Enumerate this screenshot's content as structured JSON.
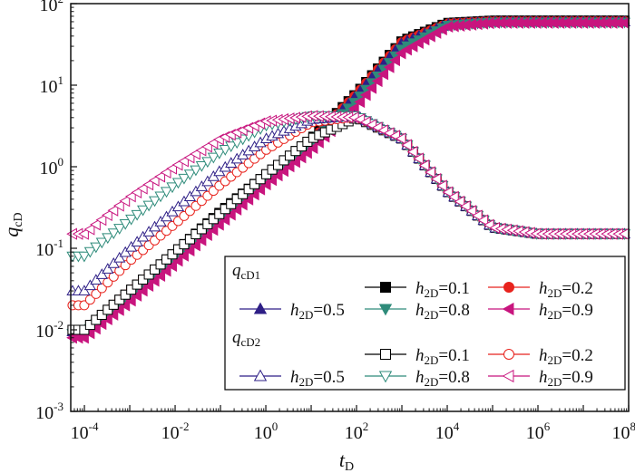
{
  "chart_data": {
    "type": "line",
    "x_scale": "log",
    "y_scale": "log",
    "xlim": [
      5e-05,
      100000000
    ],
    "ylim": [
      0.001,
      100
    ],
    "grid": false,
    "legend_placement": "bottom-right",
    "xlabel": {
      "main": "t",
      "sub": "D"
    },
    "ylabel": {
      "main": "q",
      "sub": "cD"
    },
    "x_ticks": [
      {
        "value": 0.0001,
        "base": "10",
        "exp": "-4"
      },
      {
        "value": 0.01,
        "base": "10",
        "exp": "-2"
      },
      {
        "value": 1,
        "base": "10",
        "exp": "0"
      },
      {
        "value": 100,
        "base": "10",
        "exp": "2"
      },
      {
        "value": 10000,
        "base": "10",
        "exp": "4"
      },
      {
        "value": 1000000,
        "base": "10",
        "exp": "6"
      },
      {
        "value": 100000000,
        "base": "10",
        "exp": "8"
      }
    ],
    "y_ticks": [
      {
        "value": 0.001,
        "base": "10",
        "exp": "-3"
      },
      {
        "value": 0.01,
        "base": "10",
        "exp": "-2"
      },
      {
        "value": 0.1,
        "base": "10",
        "exp": "-1"
      },
      {
        "value": 1,
        "base": "10",
        "exp": "0"
      },
      {
        "value": 10,
        "base": "10",
        "exp": "1"
      },
      {
        "value": 100,
        "base": "10",
        "exp": "2"
      }
    ],
    "legend_groups": [
      {
        "label": "q",
        "label_sub": "cD1"
      },
      {
        "label": "q",
        "label_sub": "cD2"
      }
    ],
    "series": [
      {
        "name_prefix": "h",
        "name_sub": "2D",
        "name_value": "=0.1",
        "group": 0,
        "color": "#000000",
        "marker": "square",
        "filled": true,
        "x": [
          0.0001,
          0.001,
          0.01,
          0.1,
          1,
          10,
          100,
          1000,
          10000,
          100000,
          1000000,
          10000000,
          100000000
        ],
        "y": [
          0.01,
          0.03,
          0.09,
          0.28,
          0.8,
          2.2,
          8,
          35,
          58,
          62,
          62,
          62,
          62
        ]
      },
      {
        "name_prefix": "h",
        "name_sub": "2D",
        "name_value": "=0.2",
        "group": 0,
        "color": "#e8231d",
        "marker": "circle",
        "filled": true,
        "x": [
          0.0001,
          0.001,
          0.01,
          0.1,
          1,
          10,
          100,
          1000,
          10000,
          100000,
          1000000,
          10000000,
          100000000
        ],
        "y": [
          0.01,
          0.03,
          0.09,
          0.27,
          0.78,
          2.1,
          7.8,
          34,
          57,
          61,
          61,
          61,
          61
        ]
      },
      {
        "name_prefix": "h",
        "name_sub": "2D",
        "name_value": "=0.5",
        "group": 0,
        "color": "#2e1f86",
        "marker": "triangle-up",
        "filled": true,
        "x": [
          0.0001,
          0.001,
          0.01,
          0.1,
          1,
          10,
          100,
          1000,
          10000,
          100000,
          1000000,
          10000000,
          100000000
        ],
        "y": [
          0.0095,
          0.028,
          0.085,
          0.26,
          0.75,
          2.0,
          7.5,
          33,
          56,
          60,
          60,
          60,
          60
        ]
      },
      {
        "name_prefix": "h",
        "name_sub": "2D",
        "name_value": "=0.8",
        "group": 0,
        "color": "#2e8b7a",
        "marker": "triangle-down",
        "filled": true,
        "x": [
          0.0001,
          0.001,
          0.01,
          0.1,
          1,
          10,
          100,
          1000,
          10000,
          100000,
          1000000,
          10000000,
          100000000
        ],
        "y": [
          0.009,
          0.026,
          0.08,
          0.24,
          0.7,
          1.9,
          6.5,
          28,
          54,
          59,
          59,
          59,
          59
        ]
      },
      {
        "name_prefix": "h",
        "name_sub": "2D",
        "name_value": "=0.9",
        "group": 0,
        "color": "#c8157e",
        "marker": "triangle-left",
        "filled": true,
        "x": [
          0.0001,
          0.001,
          0.01,
          0.1,
          1,
          10,
          100,
          1000,
          10000,
          100000,
          1000000,
          10000000,
          100000000
        ],
        "y": [
          0.008,
          0.022,
          0.065,
          0.2,
          0.6,
          1.6,
          5.5,
          25,
          52,
          58,
          58,
          58,
          58
        ]
      },
      {
        "name_prefix": "h",
        "name_sub": "2D",
        "name_value": "=0.1",
        "group": 1,
        "color": "#000000",
        "marker": "square",
        "filled": false,
        "x": [
          0.0001,
          0.001,
          0.01,
          0.1,
          1,
          10,
          100,
          1000,
          10000,
          100000,
          1000000,
          10000000,
          100000000
        ],
        "y": [
          0.01,
          0.03,
          0.09,
          0.27,
          0.8,
          2.2,
          4.0,
          2.2,
          0.5,
          0.18,
          0.15,
          0.15,
          0.15
        ]
      },
      {
        "name_prefix": "h",
        "name_sub": "2D",
        "name_value": "=0.2",
        "group": 1,
        "color": "#e8231d",
        "marker": "circle",
        "filled": false,
        "x": [
          0.0001,
          0.001,
          0.01,
          0.1,
          1,
          10,
          100,
          1000,
          10000,
          100000,
          1000000,
          10000000,
          100000000
        ],
        "y": [
          0.02,
          0.07,
          0.2,
          0.6,
          1.6,
          3.5,
          4.1,
          2.2,
          0.5,
          0.18,
          0.15,
          0.15,
          0.15
        ]
      },
      {
        "name_prefix": "h",
        "name_sub": "2D",
        "name_value": "=0.5",
        "group": 1,
        "color": "#2e1f86",
        "marker": "triangle-up",
        "filled": false,
        "x": [
          0.0001,
          0.001,
          0.01,
          0.1,
          1,
          10,
          100,
          1000,
          10000,
          100000,
          1000000,
          10000000,
          100000000
        ],
        "y": [
          0.03,
          0.1,
          0.3,
          0.9,
          2.2,
          3.8,
          4.2,
          2.2,
          0.5,
          0.18,
          0.15,
          0.15,
          0.15
        ]
      },
      {
        "name_prefix": "h",
        "name_sub": "2D",
        "name_value": "=0.8",
        "group": 1,
        "color": "#2e8b7a",
        "marker": "triangle-down",
        "filled": false,
        "x": [
          0.0001,
          0.001,
          0.01,
          0.1,
          1,
          10,
          100,
          1000,
          10000,
          100000,
          1000000,
          10000000,
          100000000
        ],
        "y": [
          0.08,
          0.22,
          0.6,
          1.5,
          3.2,
          4.2,
          4.2,
          2.2,
          0.5,
          0.18,
          0.15,
          0.15,
          0.15
        ]
      },
      {
        "name_prefix": "h",
        "name_sub": "2D",
        "name_value": "=0.9",
        "group": 1,
        "color": "#c8157e",
        "marker": "triangle-left",
        "filled": false,
        "x": [
          0.0001,
          0.001,
          0.01,
          0.1,
          1,
          10,
          100,
          1000,
          10000,
          100000,
          1000000,
          10000000,
          100000000
        ],
        "y": [
          0.15,
          0.42,
          1.0,
          2.2,
          3.6,
          4.2,
          4.0,
          2.2,
          0.5,
          0.18,
          0.15,
          0.15,
          0.15
        ]
      }
    ]
  }
}
